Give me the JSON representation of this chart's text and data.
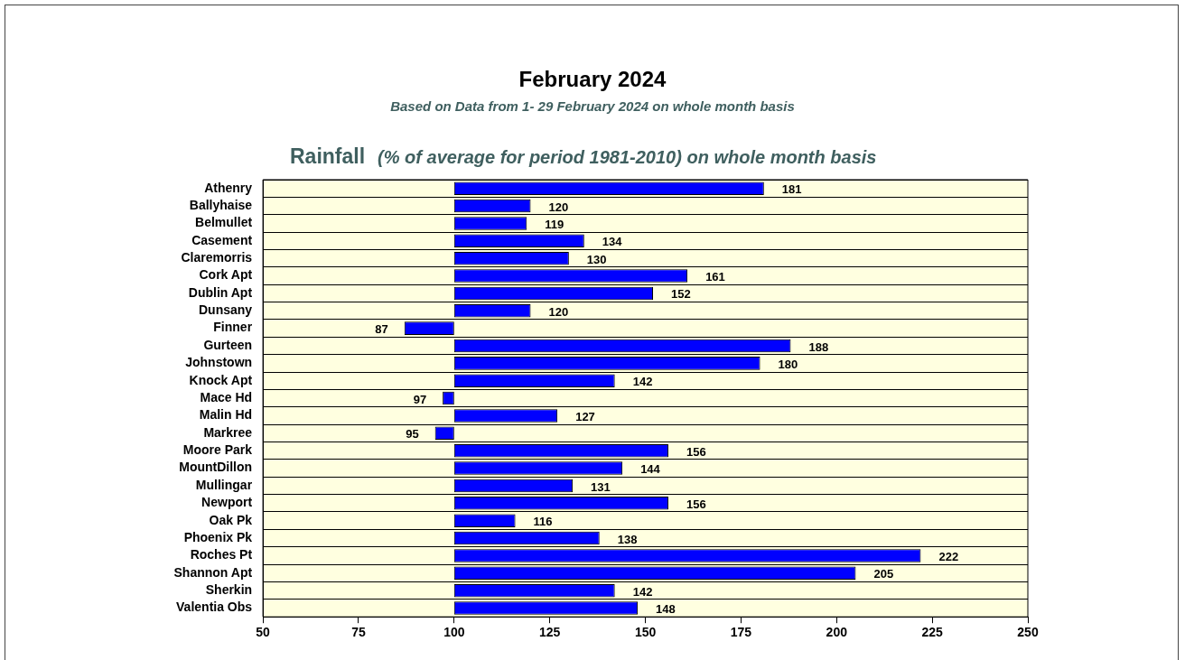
{
  "chart_data": {
    "type": "bar",
    "orientation": "horizontal",
    "title": "February 2024",
    "subtitle": "Based on Data from 1- 29 February 2024 on whole month basis",
    "annotations": [
      "Rainfall",
      "(% of average for period 1981-2010) on whole month basis"
    ],
    "categories": [
      "Athenry",
      "Ballyhaise",
      "Belmullet",
      "Casement",
      "Claremorris",
      "Cork Apt",
      "Dublin Apt",
      "Dunsany",
      "Finner",
      "Gurteen",
      "Johnstown",
      "Knock Apt",
      "Mace Hd",
      "Malin Hd",
      "Markree",
      "Moore Park",
      "MountDillon",
      "Mullingar",
      "Newport",
      "Oak Pk",
      "Phoenix Pk",
      "Roches Pt",
      "Shannon Apt",
      "Sherkin",
      "Valentia Obs"
    ],
    "base": [
      100,
      100,
      100,
      100,
      100,
      100,
      100,
      100,
      100,
      100,
      100,
      100,
      100,
      100,
      100,
      100,
      100,
      100,
      100,
      100,
      100,
      100,
      100,
      100,
      100
    ],
    "values": [
      81,
      20,
      19,
      34,
      30,
      61,
      52,
      20,
      -13,
      88,
      80,
      42,
      -3,
      27,
      -5,
      56,
      44,
      31,
      56,
      16,
      38,
      122,
      105,
      42,
      48
    ],
    "value_labels": [
      "181",
      "120",
      "119",
      "134",
      "130",
      "161",
      "152",
      "120",
      "87",
      "188",
      "180",
      "142",
      "97",
      "127",
      "95",
      "156",
      "144",
      "131",
      "156",
      "116",
      "138",
      "222",
      "205",
      "142",
      "148"
    ],
    "color": "#0000ff",
    "xlim": [
      50,
      250
    ],
    "xticks": [
      50,
      75,
      100,
      125,
      150,
      175,
      200,
      225,
      250
    ],
    "grid": "y"
  }
}
